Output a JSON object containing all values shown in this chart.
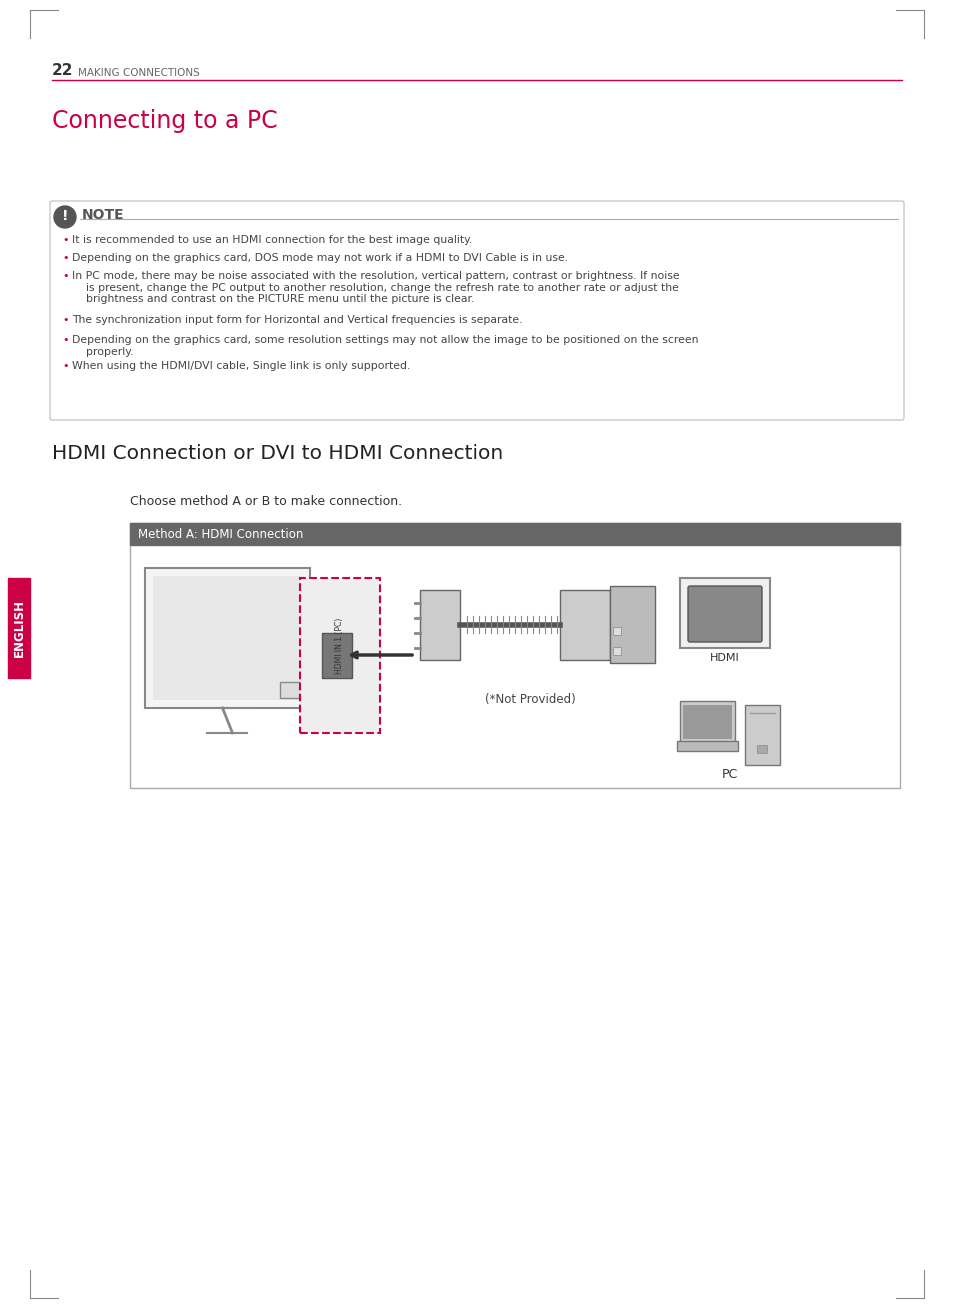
{
  "page_number": "22",
  "header_text": "MAKING CONNECTIONS",
  "title": "Connecting to a PC",
  "title_color": "#cc0044",
  "section_title": "HDMI Connection or DVI to HDMI Connection",
  "section_title_color": "#333333",
  "note_label": "NOTE",
  "note_bullets": [
    "It is recommended to use an HDMI connection for the best image quality.",
    "Depending on the graphics card, DOS mode may not work if a HDMI to DVI Cable is in use.",
    "In PC mode, there may be noise associated with the resolution, vertical pattern, contrast or brightness. If noise is present, change the PC output to another resolution, change the refresh rate to another rate or adjust the brightness and contrast on the PICTURE menu until the picture is clear.",
    "The synchronization input form for Horizontal and Vertical frequencies is separate.",
    "Depending on the graphics card, some resolution settings may not allow the image to be positioned on the screen properly.",
    "When using the HDMI/DVI cable, Single link is only supported."
  ],
  "method_label": "Method A: HDMI Connection",
  "choose_text": "Choose method A or B to make connection.",
  "not_provided_text": "(*Not Provided)",
  "hdmi_label": "HDMI",
  "pc_label": "PC",
  "english_label": "ENGLISH",
  "bg_color": "#ffffff",
  "header_line_color": "#cc0044",
  "note_border_color": "#aaaaaa",
  "method_bar_color": "#666666",
  "english_bar_color": "#cc0044"
}
